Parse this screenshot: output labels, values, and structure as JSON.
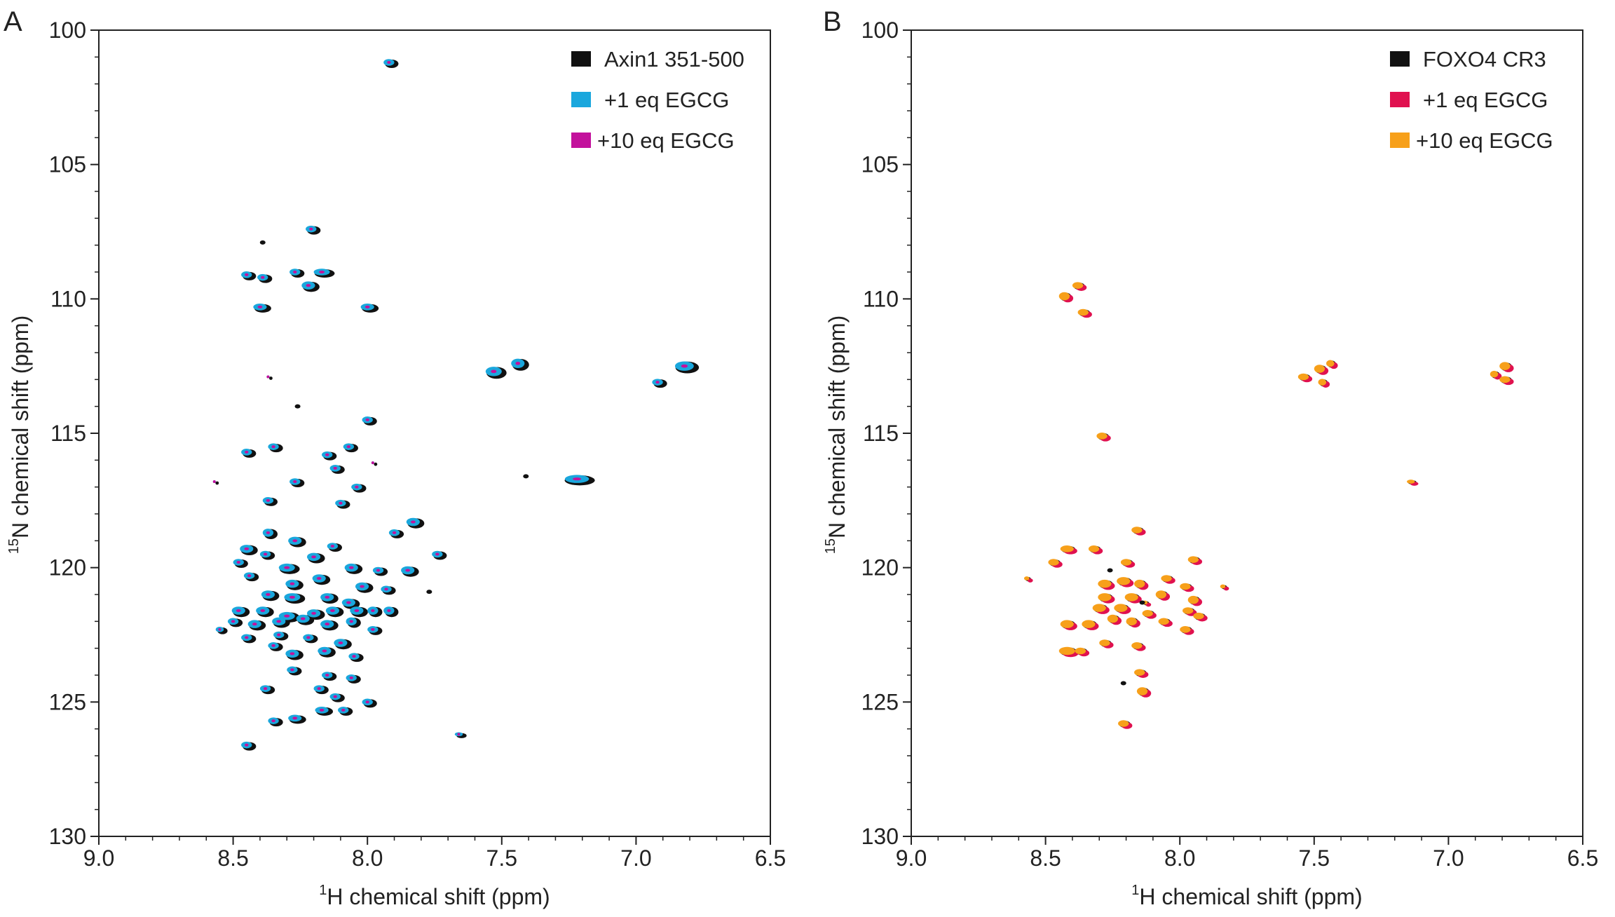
{
  "colors": {
    "black": "#111111",
    "cyan": "#1aa7dd",
    "magenta": "#c3119c",
    "crimson": "#e0114f",
    "orange": "#f7a01a"
  },
  "chart_data": [
    {
      "type": "scatter",
      "panel": "A",
      "xlabel_sup": "1",
      "xlabel": "H chemical shift (ppm)",
      "ylabel_sup": "15",
      "ylabel": "N  chemical shift (ppm)",
      "xlim": [
        9.0,
        6.5
      ],
      "ylim": [
        100,
        130
      ],
      "xticks": [
        "9.0",
        "8.5",
        "8.0",
        "7.5",
        "7.0",
        "6.5"
      ],
      "yticks": [
        "100",
        "105",
        "110",
        "115",
        "120",
        "125",
        "130"
      ],
      "legend": [
        {
          "label": "Axin1 351-500",
          "color": "#111111"
        },
        {
          "label": "+1 eq EGCG",
          "color": "#1aa7dd"
        },
        {
          "label": "+10 eq EGCG",
          "color": "#c3119c"
        }
      ],
      "peaks": [
        [
          7.92,
          101.2,
          0.04,
          0.25
        ],
        [
          8.21,
          107.4,
          0.04,
          0.25
        ],
        [
          8.45,
          109.1,
          0.04,
          0.25
        ],
        [
          8.39,
          109.2,
          0.04,
          0.25
        ],
        [
          8.27,
          109.0,
          0.04,
          0.25
        ],
        [
          8.22,
          109.5,
          0.05,
          0.3
        ],
        [
          8.17,
          109.0,
          0.06,
          0.25
        ],
        [
          8.4,
          110.3,
          0.05,
          0.25
        ],
        [
          8.0,
          110.3,
          0.05,
          0.25
        ],
        [
          7.53,
          112.7,
          0.06,
          0.35
        ],
        [
          7.44,
          112.4,
          0.05,
          0.35
        ],
        [
          6.92,
          113.1,
          0.04,
          0.25
        ],
        [
          6.82,
          112.5,
          0.07,
          0.35
        ],
        [
          8.0,
          114.5,
          0.04,
          0.25
        ],
        [
          8.45,
          115.7,
          0.04,
          0.25
        ],
        [
          8.35,
          115.5,
          0.04,
          0.25
        ],
        [
          8.15,
          115.8,
          0.04,
          0.25
        ],
        [
          8.07,
          115.5,
          0.04,
          0.25
        ],
        [
          8.12,
          116.3,
          0.04,
          0.25
        ],
        [
          8.27,
          116.8,
          0.04,
          0.25
        ],
        [
          8.04,
          117.0,
          0.04,
          0.25
        ],
        [
          7.22,
          116.7,
          0.09,
          0.3
        ],
        [
          8.37,
          117.5,
          0.04,
          0.25
        ],
        [
          8.1,
          117.6,
          0.04,
          0.25
        ],
        [
          7.83,
          118.3,
          0.05,
          0.3
        ],
        [
          8.37,
          118.7,
          0.04,
          0.3
        ],
        [
          8.45,
          119.3,
          0.05,
          0.3
        ],
        [
          8.27,
          119.0,
          0.05,
          0.3
        ],
        [
          8.13,
          119.2,
          0.04,
          0.25
        ],
        [
          7.9,
          118.7,
          0.04,
          0.25
        ],
        [
          8.48,
          119.8,
          0.04,
          0.25
        ],
        [
          8.38,
          119.5,
          0.04,
          0.25
        ],
        [
          8.2,
          119.6,
          0.05,
          0.3
        ],
        [
          8.3,
          120.0,
          0.06,
          0.3
        ],
        [
          8.06,
          120.0,
          0.05,
          0.3
        ],
        [
          7.96,
          120.1,
          0.04,
          0.25
        ],
        [
          7.85,
          120.1,
          0.05,
          0.3
        ],
        [
          7.74,
          119.5,
          0.04,
          0.25
        ],
        [
          8.44,
          120.3,
          0.04,
          0.25
        ],
        [
          8.28,
          120.6,
          0.05,
          0.3
        ],
        [
          8.18,
          120.4,
          0.05,
          0.3
        ],
        [
          8.02,
          120.7,
          0.05,
          0.3
        ],
        [
          7.93,
          120.8,
          0.04,
          0.25
        ],
        [
          8.37,
          121.0,
          0.05,
          0.3
        ],
        [
          8.28,
          121.1,
          0.06,
          0.3
        ],
        [
          8.15,
          121.1,
          0.05,
          0.3
        ],
        [
          8.07,
          121.3,
          0.05,
          0.3
        ],
        [
          8.48,
          121.6,
          0.05,
          0.3
        ],
        [
          8.39,
          121.6,
          0.05,
          0.3
        ],
        [
          8.3,
          121.8,
          0.06,
          0.3
        ],
        [
          8.2,
          121.7,
          0.05,
          0.3
        ],
        [
          8.13,
          121.6,
          0.05,
          0.3
        ],
        [
          8.04,
          121.6,
          0.05,
          0.3
        ],
        [
          7.98,
          121.6,
          0.04,
          0.3
        ],
        [
          7.92,
          121.6,
          0.04,
          0.3
        ],
        [
          8.5,
          122.0,
          0.04,
          0.25
        ],
        [
          8.42,
          122.1,
          0.05,
          0.3
        ],
        [
          8.33,
          122.0,
          0.05,
          0.3
        ],
        [
          8.24,
          121.9,
          0.05,
          0.3
        ],
        [
          8.15,
          122.1,
          0.05,
          0.3
        ],
        [
          8.06,
          122.0,
          0.04,
          0.3
        ],
        [
          8.45,
          122.6,
          0.04,
          0.25
        ],
        [
          8.33,
          122.5,
          0.04,
          0.25
        ],
        [
          8.22,
          122.6,
          0.04,
          0.25
        ],
        [
          8.1,
          122.8,
          0.05,
          0.3
        ],
        [
          7.98,
          122.3,
          0.04,
          0.25
        ],
        [
          8.55,
          122.3,
          0.03,
          0.2
        ],
        [
          8.35,
          122.9,
          0.04,
          0.25
        ],
        [
          8.28,
          123.2,
          0.05,
          0.3
        ],
        [
          8.16,
          123.1,
          0.05,
          0.3
        ],
        [
          8.05,
          123.3,
          0.04,
          0.25
        ],
        [
          8.28,
          123.8,
          0.04,
          0.25
        ],
        [
          8.15,
          124.0,
          0.04,
          0.25
        ],
        [
          8.06,
          124.1,
          0.04,
          0.25
        ],
        [
          8.18,
          124.5,
          0.04,
          0.25
        ],
        [
          8.12,
          124.8,
          0.04,
          0.25
        ],
        [
          8.38,
          124.5,
          0.04,
          0.25
        ],
        [
          8.0,
          125.0,
          0.04,
          0.25
        ],
        [
          8.35,
          125.7,
          0.04,
          0.25
        ],
        [
          8.27,
          125.6,
          0.05,
          0.25
        ],
        [
          8.17,
          125.3,
          0.05,
          0.25
        ],
        [
          8.09,
          125.3,
          0.04,
          0.25
        ],
        [
          8.45,
          126.6,
          0.04,
          0.25
        ],
        [
          7.66,
          126.2,
          0.03,
          0.15
        ],
        [
          8.37,
          112.9,
          0.01,
          0.1
        ],
        [
          8.57,
          116.8,
          0.01,
          0.1
        ],
        [
          7.98,
          116.1,
          0.01,
          0.1
        ]
      ],
      "faint_black": [
        [
          8.26,
          114.0
        ],
        [
          7.41,
          116.6
        ],
        [
          8.39,
          107.9
        ],
        [
          7.77,
          120.9
        ]
      ]
    },
    {
      "type": "scatter",
      "panel": "B",
      "xlabel_sup": "1",
      "xlabel": "H chemical shift (ppm)",
      "ylabel_sup": "15",
      "ylabel": "N  chemical shift (ppm)",
      "xlim": [
        9.0,
        6.5
      ],
      "ylim": [
        100,
        130
      ],
      "xticks": [
        "9.0",
        "8.5",
        "8.0",
        "7.5",
        "7.0",
        "6.5"
      ],
      "yticks": [
        "100",
        "105",
        "110",
        "115",
        "120",
        "125",
        "130"
      ],
      "legend": [
        {
          "label": "FOXO4 CR3",
          "color": "#111111"
        },
        {
          "label": "+1 eq EGCG",
          "color": "#e0114f"
        },
        {
          "label": "+10 eq EGCG",
          "color": "#f7a01a"
        }
      ],
      "peaks": [
        [
          8.38,
          109.5,
          0.04,
          0.25
        ],
        [
          8.43,
          109.9,
          0.04,
          0.3
        ],
        [
          8.36,
          110.5,
          0.04,
          0.25
        ],
        [
          8.29,
          115.1,
          0.04,
          0.25
        ],
        [
          7.54,
          112.9,
          0.04,
          0.25
        ],
        [
          7.48,
          112.6,
          0.04,
          0.3
        ],
        [
          7.44,
          112.4,
          0.03,
          0.25
        ],
        [
          7.47,
          113.1,
          0.03,
          0.25
        ],
        [
          6.79,
          112.5,
          0.04,
          0.3
        ],
        [
          6.79,
          113.0,
          0.04,
          0.25
        ],
        [
          6.83,
          112.8,
          0.03,
          0.25
        ],
        [
          7.14,
          116.8,
          0.03,
          0.15
        ],
        [
          8.16,
          118.6,
          0.04,
          0.25
        ],
        [
          8.42,
          119.3,
          0.05,
          0.25
        ],
        [
          8.32,
          119.3,
          0.04,
          0.25
        ],
        [
          8.47,
          119.8,
          0.04,
          0.25
        ],
        [
          8.2,
          119.8,
          0.04,
          0.25
        ],
        [
          7.95,
          119.7,
          0.04,
          0.25
        ],
        [
          8.28,
          120.6,
          0.05,
          0.3
        ],
        [
          8.21,
          120.5,
          0.05,
          0.3
        ],
        [
          8.15,
          120.6,
          0.04,
          0.3
        ],
        [
          8.05,
          120.4,
          0.04,
          0.25
        ],
        [
          7.98,
          120.7,
          0.04,
          0.25
        ],
        [
          8.28,
          121.1,
          0.05,
          0.3
        ],
        [
          8.18,
          121.1,
          0.05,
          0.3
        ],
        [
          8.07,
          121.0,
          0.04,
          0.3
        ],
        [
          7.95,
          121.2,
          0.04,
          0.3
        ],
        [
          8.3,
          121.5,
          0.05,
          0.3
        ],
        [
          8.22,
          121.5,
          0.05,
          0.3
        ],
        [
          8.12,
          121.7,
          0.04,
          0.25
        ],
        [
          7.97,
          121.6,
          0.04,
          0.25
        ],
        [
          8.42,
          122.1,
          0.05,
          0.3
        ],
        [
          8.34,
          122.1,
          0.05,
          0.3
        ],
        [
          8.25,
          121.9,
          0.04,
          0.3
        ],
        [
          8.18,
          122.0,
          0.04,
          0.3
        ],
        [
          8.06,
          122.0,
          0.04,
          0.25
        ],
        [
          7.93,
          121.8,
          0.04,
          0.25
        ],
        [
          7.98,
          122.3,
          0.04,
          0.25
        ],
        [
          8.28,
          122.8,
          0.04,
          0.25
        ],
        [
          8.16,
          122.9,
          0.04,
          0.25
        ],
        [
          8.42,
          123.1,
          0.06,
          0.3
        ],
        [
          8.37,
          123.1,
          0.04,
          0.25
        ],
        [
          8.15,
          123.9,
          0.04,
          0.25
        ],
        [
          8.14,
          124.6,
          0.04,
          0.3
        ],
        [
          8.21,
          125.8,
          0.04,
          0.25
        ],
        [
          7.84,
          120.7,
          0.02,
          0.15
        ],
        [
          8.57,
          120.4,
          0.02,
          0.15
        ],
        [
          8.13,
          121.3,
          0.02,
          0.15
        ]
      ],
      "faint_black": [
        [
          8.21,
          124.3
        ],
        [
          8.14,
          121.3
        ],
        [
          8.26,
          120.1
        ]
      ]
    }
  ]
}
